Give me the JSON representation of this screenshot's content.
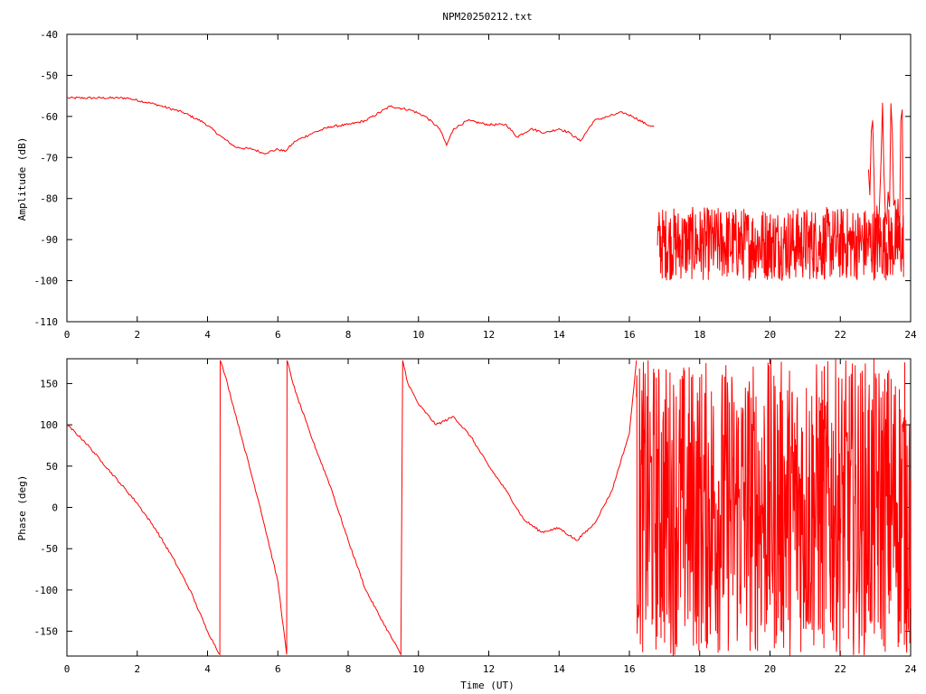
{
  "title": "NPM20250212.txt",
  "chart_data": [
    {
      "type": "line",
      "title": "NPM20250212.txt",
      "xlabel": "",
      "ylabel": "Amplitude (dB)",
      "xlim": [
        0,
        24
      ],
      "ylim": [
        -110,
        -40
      ],
      "x_ticks": [
        "0",
        "2",
        "4",
        "6",
        "8",
        "10",
        "12",
        "14",
        "16",
        "18",
        "20",
        "22",
        "24"
      ],
      "y_ticks": [
        "-110",
        "-100",
        "-90",
        "-80",
        "-70",
        "-60",
        "-50",
        "-40"
      ],
      "grid": false,
      "series_color": "#ff0000",
      "series": [
        {
          "x": [
            0,
            1.7,
            2.5,
            3.3,
            3.9,
            4.4,
            4.8,
            5.3,
            5.6,
            6.0,
            6.2,
            6.5,
            7.0,
            7.5,
            8.0,
            8.5,
            9.2,
            9.8,
            10.2,
            10.6,
            10.8,
            11.0,
            11.4,
            12.0,
            12.5,
            12.8,
            13.2,
            13.6,
            14.0,
            14.3,
            14.6,
            15.0,
            15.4,
            15.8,
            16.1,
            16.5,
            16.7
          ],
          "y": [
            -55.5,
            -55.5,
            -57,
            -59,
            -61.5,
            -65,
            -67.5,
            -68,
            -69,
            -68,
            -68.5,
            -66,
            -64,
            -62.5,
            -62,
            -61,
            -57.5,
            -58.5,
            -60,
            -63,
            -67,
            -63,
            -61,
            -62,
            -62,
            -65,
            -63,
            -64,
            -63,
            -64,
            -66,
            -61,
            -60,
            -59,
            -60,
            -62,
            -62.5
          ]
        }
      ],
      "annotations": [
        {
          "x_range": [
            16.8,
            23.8
          ],
          "y_range": [
            -100,
            -82
          ],
          "label": "noise"
        },
        {
          "x_range": [
            22.8,
            23.8
          ],
          "y_range": [
            -100,
            -55
          ],
          "label": "spikes"
        }
      ]
    },
    {
      "type": "line",
      "title": "",
      "xlabel": "Time (UT)",
      "ylabel": "Phase (deg)",
      "xlim": [
        0,
        24
      ],
      "ylim": [
        -180,
        180
      ],
      "x_ticks": [
        "0",
        "2",
        "4",
        "6",
        "8",
        "10",
        "12",
        "14",
        "16",
        "18",
        "20",
        "22",
        "24"
      ],
      "y_ticks": [
        "-150",
        "-100",
        "-50",
        "0",
        "50",
        "100",
        "150"
      ],
      "grid": false,
      "series_color": "#ff0000",
      "series": [
        {
          "x": [
            0,
            0.5,
            1.0,
            1.5,
            2.0,
            2.5,
            3.0,
            3.5,
            4.0,
            4.35,
            4.36,
            4.5,
            5.0,
            5.5,
            6.0,
            6.25,
            6.26,
            6.5,
            7.0,
            7.5,
            8.0,
            8.5,
            9.0,
            9.5,
            9.55,
            9.7,
            10.0,
            10.5,
            11.0,
            11.5,
            12.0,
            12.5,
            13.0,
            13.5,
            14.0,
            14.5,
            15.0,
            15.5,
            16.0,
            16.2
          ],
          "y": [
            100,
            80,
            55,
            30,
            5,
            -25,
            -60,
            -100,
            -150,
            -178,
            178,
            160,
            80,
            0,
            -90,
            -178,
            178,
            140,
            80,
            25,
            -40,
            -100,
            -140,
            -178,
            178,
            150,
            125,
            100,
            110,
            85,
            50,
            20,
            -15,
            -30,
            -25,
            -40,
            -20,
            20,
            90,
            178
          ]
        }
      ],
      "annotations": [
        {
          "x_range": [
            16.2,
            24
          ],
          "y_range": [
            -180,
            180
          ],
          "label": "noise"
        }
      ]
    }
  ]
}
